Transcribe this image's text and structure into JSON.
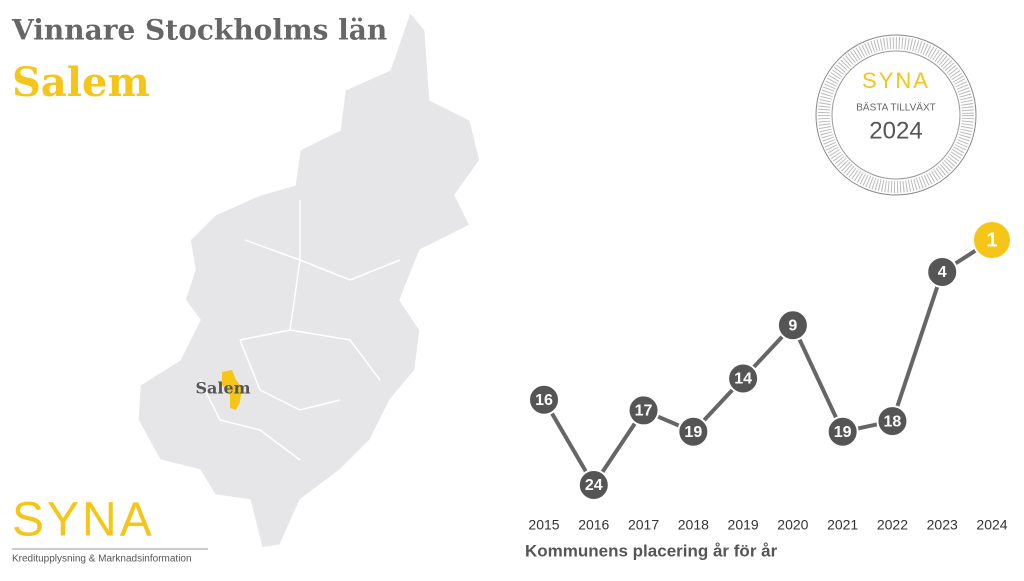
{
  "header": {
    "title": "Vinnare Stockholms län",
    "subtitle": "Salem"
  },
  "map": {
    "label": "Salem"
  },
  "logo": {
    "name": "SYNA",
    "tagline": "Kreditupplysning & Marknadsinformation"
  },
  "badge": {
    "name": "SYNA",
    "caption": "BÄSTA TILLVÄXT",
    "year": "2024"
  },
  "chart_data": {
    "type": "line",
    "x_label": "Kommunens placering år för år",
    "categories": [
      "2015",
      "2016",
      "2017",
      "2018",
      "2019",
      "2020",
      "2021",
      "2022",
      "2023",
      "2024"
    ],
    "series": [
      {
        "name": "Salem",
        "color": "#666666",
        "values": [
          16,
          24,
          17,
          19,
          14,
          9,
          19,
          18,
          4,
          1
        ]
      }
    ],
    "highlight_color": "#f5c518",
    "ylim": [
      24,
      1
    ]
  }
}
